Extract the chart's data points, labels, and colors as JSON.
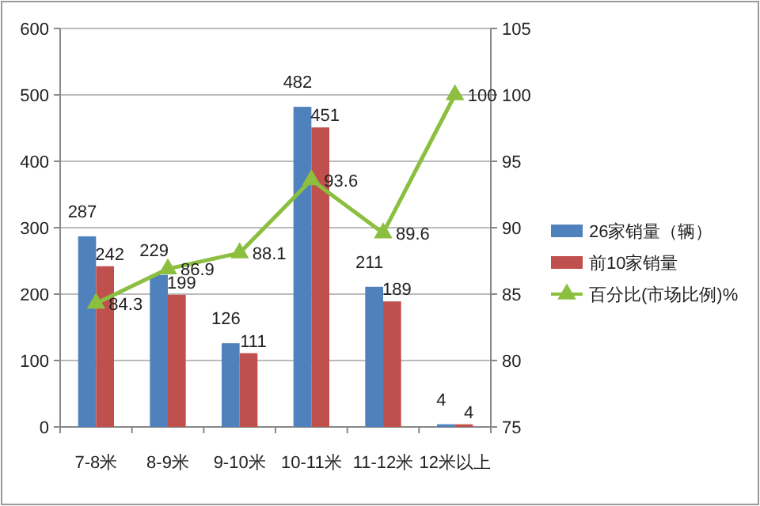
{
  "chart_data": {
    "type": "bar",
    "categories": [
      "7-8米",
      "8-9米",
      "9-10米",
      "10-11米",
      "11-12米",
      "12米以上"
    ],
    "series": [
      {
        "name": "26家销量（辆）",
        "color": "#4f81bd",
        "values": [
          287,
          229,
          126,
          482,
          211,
          4
        ]
      },
      {
        "name": "前10家销量",
        "color": "#c0504d",
        "values": [
          242,
          199,
          111,
          451,
          189,
          4
        ]
      },
      {
        "name": "百分比(市场比例)%",
        "type": "line",
        "axis": "y2",
        "color": "#8cbf3f",
        "marker": "triangle",
        "values": [
          84.3,
          86.9,
          88.1,
          93.6,
          89.6,
          100
        ]
      }
    ],
    "ylim": [
      0,
      600
    ],
    "yticks": [
      0,
      100,
      200,
      300,
      400,
      500,
      600
    ],
    "y2lim": [
      75,
      105
    ],
    "y2ticks": [
      75,
      80,
      85,
      90,
      95,
      100,
      105
    ],
    "grid": "y",
    "legend": "right",
    "data_labels": true
  }
}
